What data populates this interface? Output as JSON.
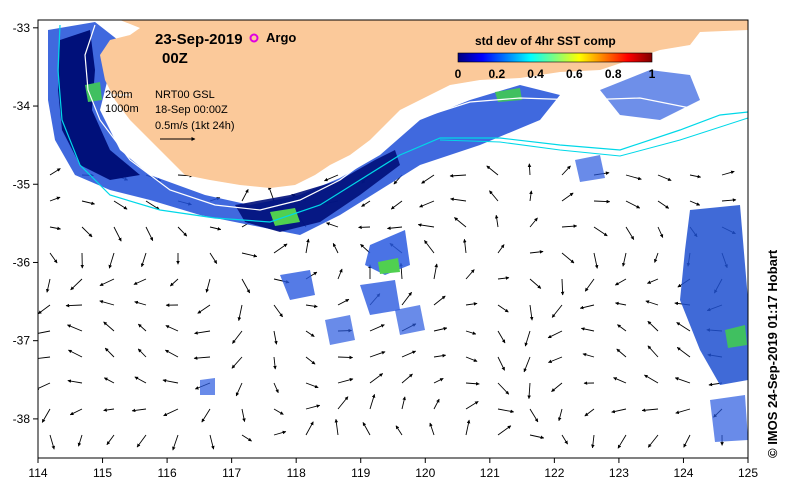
{
  "map": {
    "date": "23-Sep-2019",
    "time": "00Z",
    "legend": {
      "argo_label": "Argo",
      "argo_color": "#e000e0",
      "contour_200_label": "200m",
      "contour_1000_label": "1000m",
      "current_source": "NRT00 GSL",
      "current_date": "18-Sep 00:00Z",
      "arrow_scale": "0.5m/s (1kt 24h)"
    },
    "colorbar": {
      "title": "std dev of 4hr SST comp",
      "ticks": [
        "0",
        "0.2",
        "0.4",
        "0.6",
        "0.8",
        "1"
      ],
      "colors": [
        "#00007f",
        "#0000ff",
        "#007fff",
        "#00ffff",
        "#7fff7f",
        "#ffff00",
        "#ff7f00",
        "#ff0000",
        "#7f0000"
      ]
    },
    "x_axis": {
      "ticks": [
        "114",
        "115",
        "116",
        "117",
        "118",
        "119",
        "120",
        "121",
        "122",
        "123",
        "124",
        "125"
      ],
      "range": [
        114,
        125
      ]
    },
    "y_axis": {
      "ticks": [
        "-33",
        "-34",
        "-35",
        "-36",
        "-37",
        "-38"
      ],
      "range": [
        -38.5,
        -32.9
      ]
    },
    "land_color": "#fbc99a",
    "contour_color_200": "#ffffff",
    "contour_color_1000": "#00d8e8",
    "credit": "© IMOS 24-Sep-2019 01:17 Hobart"
  }
}
